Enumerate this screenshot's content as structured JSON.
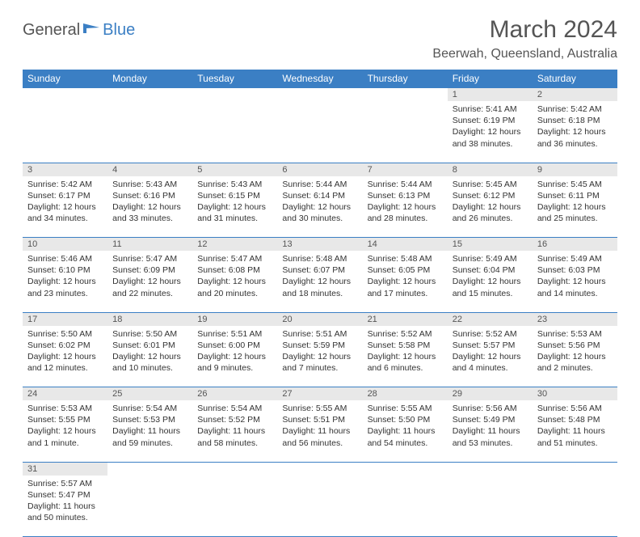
{
  "logo": {
    "text1": "General",
    "text2": "Blue"
  },
  "title": "March 2024",
  "location": "Beerwah, Queensland, Australia",
  "colors": {
    "header_bg": "#3b7fc4",
    "header_text": "#ffffff",
    "daynum_bg": "#e8e8e8",
    "text": "#333333",
    "title_text": "#555555"
  },
  "weekdays": [
    "Sunday",
    "Monday",
    "Tuesday",
    "Wednesday",
    "Thursday",
    "Friday",
    "Saturday"
  ],
  "weeks": [
    [
      null,
      null,
      null,
      null,
      null,
      {
        "n": "1",
        "sr": "5:41 AM",
        "ss": "6:19 PM",
        "dl": "12 hours and 38 minutes."
      },
      {
        "n": "2",
        "sr": "5:42 AM",
        "ss": "6:18 PM",
        "dl": "12 hours and 36 minutes."
      }
    ],
    [
      {
        "n": "3",
        "sr": "5:42 AM",
        "ss": "6:17 PM",
        "dl": "12 hours and 34 minutes."
      },
      {
        "n": "4",
        "sr": "5:43 AM",
        "ss": "6:16 PM",
        "dl": "12 hours and 33 minutes."
      },
      {
        "n": "5",
        "sr": "5:43 AM",
        "ss": "6:15 PM",
        "dl": "12 hours and 31 minutes."
      },
      {
        "n": "6",
        "sr": "5:44 AM",
        "ss": "6:14 PM",
        "dl": "12 hours and 30 minutes."
      },
      {
        "n": "7",
        "sr": "5:44 AM",
        "ss": "6:13 PM",
        "dl": "12 hours and 28 minutes."
      },
      {
        "n": "8",
        "sr": "5:45 AM",
        "ss": "6:12 PM",
        "dl": "12 hours and 26 minutes."
      },
      {
        "n": "9",
        "sr": "5:45 AM",
        "ss": "6:11 PM",
        "dl": "12 hours and 25 minutes."
      }
    ],
    [
      {
        "n": "10",
        "sr": "5:46 AM",
        "ss": "6:10 PM",
        "dl": "12 hours and 23 minutes."
      },
      {
        "n": "11",
        "sr": "5:47 AM",
        "ss": "6:09 PM",
        "dl": "12 hours and 22 minutes."
      },
      {
        "n": "12",
        "sr": "5:47 AM",
        "ss": "6:08 PM",
        "dl": "12 hours and 20 minutes."
      },
      {
        "n": "13",
        "sr": "5:48 AM",
        "ss": "6:07 PM",
        "dl": "12 hours and 18 minutes."
      },
      {
        "n": "14",
        "sr": "5:48 AM",
        "ss": "6:05 PM",
        "dl": "12 hours and 17 minutes."
      },
      {
        "n": "15",
        "sr": "5:49 AM",
        "ss": "6:04 PM",
        "dl": "12 hours and 15 minutes."
      },
      {
        "n": "16",
        "sr": "5:49 AM",
        "ss": "6:03 PM",
        "dl": "12 hours and 14 minutes."
      }
    ],
    [
      {
        "n": "17",
        "sr": "5:50 AM",
        "ss": "6:02 PM",
        "dl": "12 hours and 12 minutes."
      },
      {
        "n": "18",
        "sr": "5:50 AM",
        "ss": "6:01 PM",
        "dl": "12 hours and 10 minutes."
      },
      {
        "n": "19",
        "sr": "5:51 AM",
        "ss": "6:00 PM",
        "dl": "12 hours and 9 minutes."
      },
      {
        "n": "20",
        "sr": "5:51 AM",
        "ss": "5:59 PM",
        "dl": "12 hours and 7 minutes."
      },
      {
        "n": "21",
        "sr": "5:52 AM",
        "ss": "5:58 PM",
        "dl": "12 hours and 6 minutes."
      },
      {
        "n": "22",
        "sr": "5:52 AM",
        "ss": "5:57 PM",
        "dl": "12 hours and 4 minutes."
      },
      {
        "n": "23",
        "sr": "5:53 AM",
        "ss": "5:56 PM",
        "dl": "12 hours and 2 minutes."
      }
    ],
    [
      {
        "n": "24",
        "sr": "5:53 AM",
        "ss": "5:55 PM",
        "dl": "12 hours and 1 minute."
      },
      {
        "n": "25",
        "sr": "5:54 AM",
        "ss": "5:53 PM",
        "dl": "11 hours and 59 minutes."
      },
      {
        "n": "26",
        "sr": "5:54 AM",
        "ss": "5:52 PM",
        "dl": "11 hours and 58 minutes."
      },
      {
        "n": "27",
        "sr": "5:55 AM",
        "ss": "5:51 PM",
        "dl": "11 hours and 56 minutes."
      },
      {
        "n": "28",
        "sr": "5:55 AM",
        "ss": "5:50 PM",
        "dl": "11 hours and 54 minutes."
      },
      {
        "n": "29",
        "sr": "5:56 AM",
        "ss": "5:49 PM",
        "dl": "11 hours and 53 minutes."
      },
      {
        "n": "30",
        "sr": "5:56 AM",
        "ss": "5:48 PM",
        "dl": "11 hours and 51 minutes."
      }
    ],
    [
      {
        "n": "31",
        "sr": "5:57 AM",
        "ss": "5:47 PM",
        "dl": "11 hours and 50 minutes."
      },
      null,
      null,
      null,
      null,
      null,
      null
    ]
  ],
  "labels": {
    "sunrise": "Sunrise:",
    "sunset": "Sunset:",
    "daylight": "Daylight:"
  }
}
